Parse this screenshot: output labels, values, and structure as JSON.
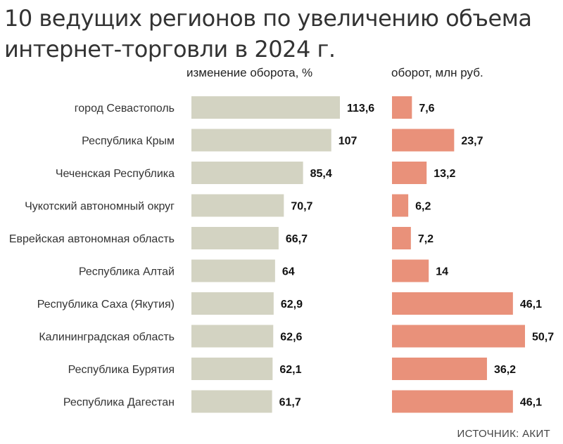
{
  "title": {
    "line1": "10 ведущих регионов по увеличению объема",
    "line2": "интернет-торговли в 2024 г."
  },
  "source": "ИСТОЧНИК: АКИТ",
  "colors": {
    "change_bar": "#d3d3c2",
    "turnover_bar": "#e9917a"
  },
  "chart_data": {
    "type": "bar",
    "orientation": "horizontal",
    "categories": [
      "город Севастополь",
      "Республика Крым",
      "Чеченская Республика",
      "Чукотский автономный округ",
      "Еврейская автономная область",
      "Республика Алтай",
      "Республика Саха (Якутия)",
      "Калининградская область",
      "Республика Бурятия",
      "Республика Дагестан"
    ],
    "series": [
      {
        "name": "изменение оборота, %",
        "values": [
          113.6,
          107,
          85.4,
          70.7,
          66.7,
          64,
          62.9,
          62.6,
          62.1,
          61.7
        ],
        "labels": [
          "113,6",
          "107",
          "85,4",
          "70,7",
          "66,7",
          "64",
          "62,9",
          "62,6",
          "62,1",
          "61,7"
        ]
      },
      {
        "name": "оборот, млн руб.",
        "values": [
          7.6,
          23.7,
          13.2,
          6.2,
          7.2,
          14,
          46.1,
          50.7,
          36.2,
          46.1
        ],
        "labels": [
          "7,6",
          "23,7",
          "13,2",
          "6,2",
          "7,2",
          "14",
          "46,1",
          "50,7",
          "36,2",
          "46,1"
        ]
      }
    ],
    "legend": "none",
    "grid": false
  }
}
